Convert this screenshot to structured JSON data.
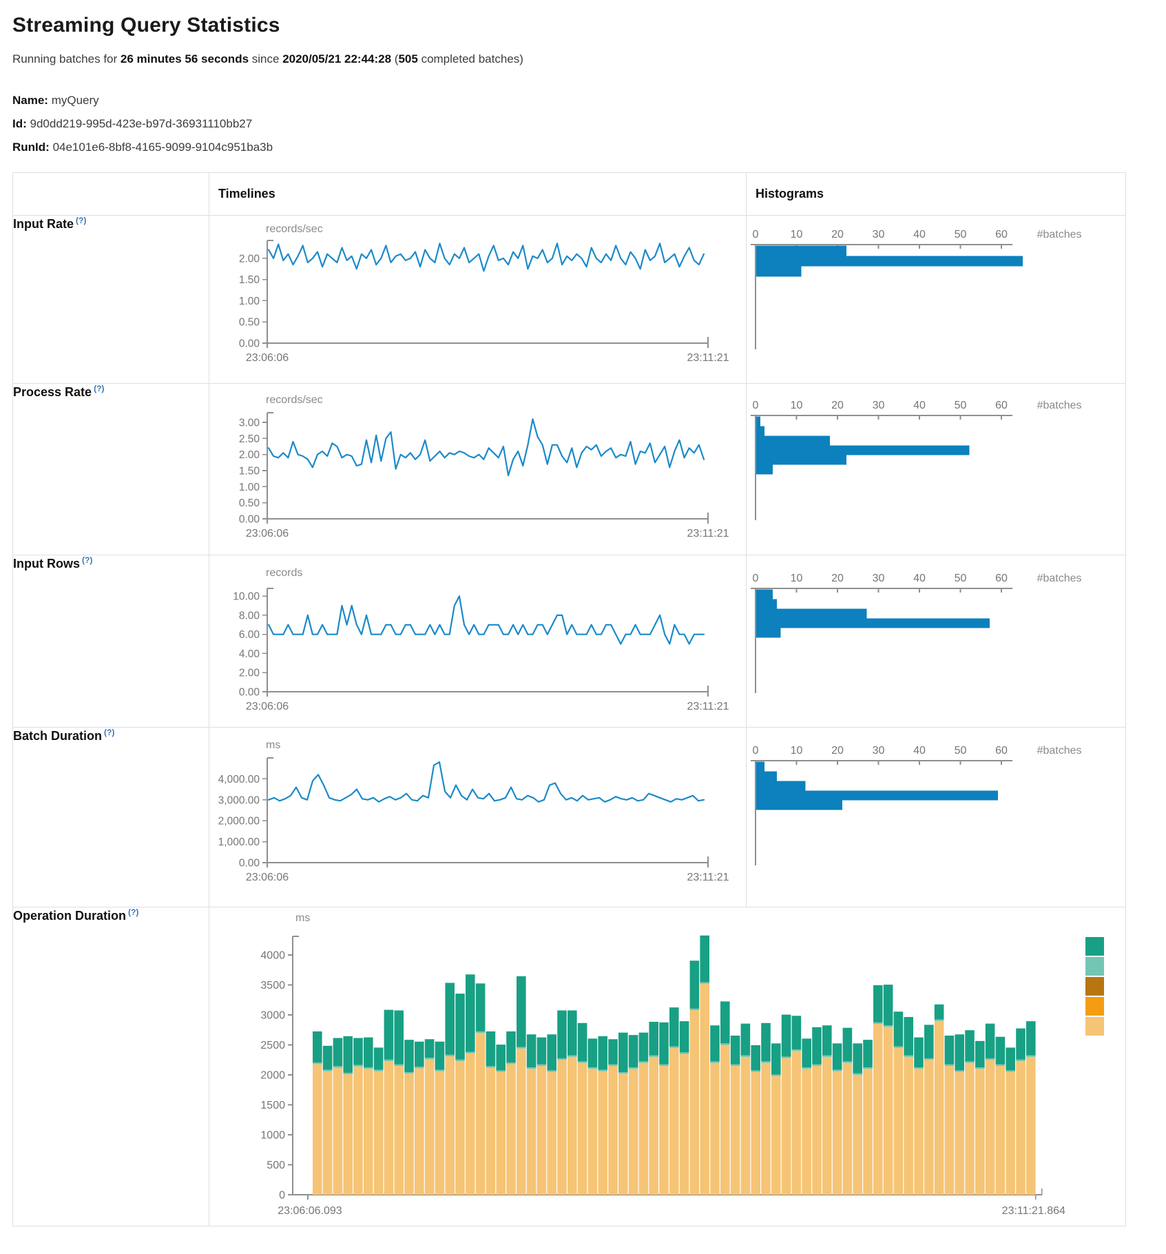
{
  "header": {
    "title": "Streaming Query Statistics",
    "running_prefix": "Running batches for",
    "duration": "26 minutes 56 seconds",
    "since_word": "since",
    "start_time": "2020/05/21 22:44:28",
    "paren_open": "(",
    "batch_count": "505",
    "completed_suffix": "completed batches)",
    "name_label": "Name:",
    "name_value": "myQuery",
    "id_label": "Id:",
    "id_value": "9d0dd219-995d-423e-b97d-36931110bb27",
    "runid_label": "RunId:",
    "runid_value": "04e101e6-8bf8-4165-9099-9104c951ba3b"
  },
  "table": {
    "col_timelines": "Timelines",
    "col_histograms": "Histograms",
    "help_marker": "(?)",
    "batches_label": "#batches"
  },
  "colors": {
    "line": "#1b8ac9",
    "bar": "#0c81bd",
    "axis": "#8f8f8f",
    "tick_text": "#767676",
    "stack": {
      "top": "#18a084",
      "mid": "#74c6b4",
      "base": "#f6c475"
    },
    "legend": [
      "#18a084",
      "#74c6b4",
      "#b7760f",
      "#f49d13",
      "#f6c475"
    ]
  },
  "chart_data": {
    "rows": [
      {
        "label": "Input Rate",
        "timeline": {
          "type": "line",
          "unit": "records/sec",
          "x_start": "23:06:06",
          "x_end": "23:11:21",
          "domain": 2.42,
          "yticks": [
            {
              "v": 2,
              "label": "2.00"
            },
            {
              "v": 1.5,
              "label": "1.50"
            },
            {
              "v": 1,
              "label": "1.00"
            },
            {
              "v": 0.5,
              "label": "0.50"
            },
            {
              "v": 0,
              "label": "0.00"
            }
          ],
          "values": [
            2.2,
            2.0,
            2.33,
            1.95,
            2.1,
            1.85,
            2.05,
            2.3,
            1.9,
            2.0,
            2.15,
            1.8,
            2.1,
            2.0,
            1.9,
            2.25,
            1.95,
            2.05,
            1.75,
            2.1,
            2.0,
            2.2,
            1.85,
            2.0,
            2.3,
            1.9,
            2.05,
            2.1,
            1.95,
            2.0,
            2.15,
            1.8,
            2.2,
            2.0,
            1.9,
            2.35,
            2.0,
            1.85,
            2.1,
            2.0,
            2.25,
            1.9,
            2.0,
            2.1,
            1.7,
            2.05,
            2.3,
            1.95,
            2.0,
            1.85,
            2.15,
            2.0,
            2.3,
            1.75,
            2.05,
            2.0,
            2.2,
            1.9,
            2.0,
            2.35,
            1.85,
            2.05,
            1.95,
            2.1,
            2.0,
            1.8,
            2.25,
            2.0,
            1.9,
            2.1,
            1.95,
            2.3,
            2.0,
            1.85,
            2.15,
            2.0,
            1.75,
            2.2,
            1.95,
            2.05,
            2.35,
            1.9,
            2.0,
            2.1,
            1.8,
            2.05,
            2.25,
            1.95,
            1.85,
            2.1
          ]
        },
        "histogram": {
          "type": "bar",
          "xticks": [
            0,
            10,
            20,
            30,
            40,
            50,
            60
          ],
          "values": [
            22,
            65,
            11
          ],
          "xlabel": "#batches"
        }
      },
      {
        "label": "Process Rate",
        "timeline": {
          "type": "line",
          "unit": "records/sec",
          "x_start": "23:06:06",
          "x_end": "23:11:21",
          "domain": 3.3,
          "yticks": [
            {
              "v": 3,
              "label": "3.00"
            },
            {
              "v": 2.5,
              "label": "2.50"
            },
            {
              "v": 2,
              "label": "2.00"
            },
            {
              "v": 1.5,
              "label": "1.50"
            },
            {
              "v": 1,
              "label": "1.00"
            },
            {
              "v": 0.5,
              "label": "0.50"
            },
            {
              "v": 0,
              "label": "0.00"
            }
          ],
          "values": [
            2.2,
            1.95,
            1.9,
            2.05,
            1.9,
            2.4,
            2.0,
            1.95,
            1.85,
            1.6,
            2.0,
            2.1,
            1.95,
            2.35,
            2.25,
            1.9,
            2.0,
            1.95,
            1.65,
            1.7,
            2.45,
            1.75,
            2.6,
            1.8,
            2.5,
            2.7,
            1.55,
            2.0,
            1.9,
            2.05,
            1.85,
            2.0,
            2.45,
            1.8,
            1.95,
            2.1,
            1.9,
            2.05,
            2.0,
            2.1,
            2.05,
            1.95,
            1.9,
            2.0,
            1.85,
            2.2,
            2.05,
            1.9,
            2.25,
            1.35,
            1.85,
            2.1,
            1.65,
            2.3,
            3.1,
            2.55,
            2.3,
            1.7,
            2.3,
            2.3,
            1.95,
            1.75,
            2.2,
            1.6,
            2.05,
            2.25,
            2.15,
            2.3,
            1.95,
            2.1,
            2.2,
            1.9,
            2.0,
            1.95,
            2.4,
            1.7,
            2.1,
            2.05,
            2.35,
            1.75,
            2.0,
            2.25,
            1.6,
            2.1,
            2.45,
            1.9,
            2.2,
            2.05,
            2.3,
            1.85
          ]
        },
        "histogram": {
          "type": "bar",
          "xticks": [
            0,
            10,
            20,
            30,
            40,
            50,
            60
          ],
          "values": [
            1,
            2,
            18,
            52,
            22,
            4
          ],
          "xlabel": "#batches"
        }
      },
      {
        "label": "Input Rows",
        "timeline": {
          "type": "line",
          "unit": "records",
          "x_start": "23:06:06",
          "x_end": "23:11:21",
          "domain": 10.8,
          "yticks": [
            {
              "v": 10,
              "label": "10.00"
            },
            {
              "v": 8,
              "label": "8.00"
            },
            {
              "v": 6,
              "label": "6.00"
            },
            {
              "v": 4,
              "label": "4.00"
            },
            {
              "v": 2,
              "label": "2.00"
            },
            {
              "v": 0,
              "label": "0.00"
            }
          ],
          "values": [
            7,
            6,
            6,
            6,
            7,
            6,
            6,
            6,
            8,
            6,
            6,
            7,
            6,
            6,
            6,
            9,
            7,
            9,
            7,
            6,
            8,
            6,
            6,
            6,
            7,
            7,
            6,
            6,
            7,
            7,
            6,
            6,
            6,
            7,
            6,
            7,
            6,
            6,
            9,
            10,
            7,
            6,
            7,
            6,
            6,
            7,
            7,
            7,
            6,
            6,
            7,
            6,
            7,
            6,
            6,
            7,
            7,
            6,
            7,
            8,
            8,
            6,
            7,
            6,
            6,
            6,
            7,
            6,
            6,
            7,
            7,
            6,
            5,
            6,
            6,
            7,
            6,
            6,
            6,
            7,
            8,
            6,
            5,
            7,
            6,
            6,
            5,
            6,
            6,
            6
          ]
        },
        "histogram": {
          "type": "bar",
          "xticks": [
            0,
            10,
            20,
            30,
            40,
            50,
            60
          ],
          "values": [
            4,
            5,
            27,
            57,
            6
          ],
          "xlabel": "#batches"
        }
      },
      {
        "label": "Batch Duration",
        "timeline": {
          "type": "line",
          "unit": "ms",
          "x_start": "23:06:06",
          "x_end": "23:11:21",
          "domain": 5000,
          "yticks": [
            {
              "v": 4000,
              "label": "4,000.00"
            },
            {
              "v": 3000,
              "label": "3,000.00"
            },
            {
              "v": 2000,
              "label": "2,000.00"
            },
            {
              "v": 1000,
              "label": "1,000.00"
            },
            {
              "v": 0,
              "label": "0.00"
            }
          ],
          "values": [
            3000,
            3100,
            2950,
            3050,
            3200,
            3600,
            3100,
            3000,
            3900,
            4200,
            3700,
            3100,
            3000,
            2950,
            3100,
            3250,
            3500,
            3050,
            3000,
            3100,
            2900,
            3050,
            3150,
            3000,
            3100,
            3300,
            3000,
            2950,
            3200,
            3100,
            4650,
            4800,
            3400,
            3100,
            3700,
            3200,
            3000,
            3500,
            3100,
            3050,
            3300,
            2950,
            3000,
            3100,
            3600,
            3050,
            3000,
            3200,
            3100,
            2900,
            3000,
            3700,
            3800,
            3300,
            3000,
            3100,
            2950,
            3200,
            3000,
            3050,
            3100,
            2900,
            3000,
            3150,
            3050,
            3000,
            3100,
            2950,
            3000,
            3300,
            3200,
            3100,
            3000,
            2900,
            3050,
            3000,
            3100,
            3200,
            2950,
            3000
          ]
        },
        "histogram": {
          "type": "bar",
          "xticks": [
            0,
            10,
            20,
            30,
            40,
            50,
            60
          ],
          "values": [
            2,
            5,
            12,
            59,
            21
          ],
          "xlabel": "#batches"
        }
      },
      {
        "label": "Operation Duration",
        "stacked": {
          "type": "bar",
          "unit": "ms",
          "x_start": "23:06:06.093",
          "x_end": "23:11:21.864",
          "divider": 25,
          "yticks": [
            {
              "v": 4000,
              "label": "4000"
            },
            {
              "v": 3500,
              "label": "3500"
            },
            {
              "v": 3000,
              "label": "3000"
            },
            {
              "v": 2500,
              "label": "2500"
            },
            {
              "v": 2000,
              "label": "2000"
            },
            {
              "v": 1500,
              "label": "1500"
            },
            {
              "v": 1000,
              "label": "1000"
            },
            {
              "v": 500,
              "label": "500"
            },
            {
              "v": 0,
              "label": "0"
            }
          ],
          "bars": [
            [
              2180,
              520
            ],
            [
              2060,
              400
            ],
            [
              2120,
              470
            ],
            [
              2010,
              610
            ],
            [
              2140,
              450
            ],
            [
              2100,
              500
            ],
            [
              2060,
              370
            ],
            [
              2230,
              830
            ],
            [
              2150,
              900
            ],
            [
              2020,
              540
            ],
            [
              2110,
              420
            ],
            [
              2260,
              310
            ],
            [
              2060,
              470
            ],
            [
              2310,
              1200
            ],
            [
              2230,
              1100
            ],
            [
              2360,
              1290
            ],
            [
              2700,
              800
            ],
            [
              2120,
              580
            ],
            [
              2050,
              430
            ],
            [
              2180,
              520
            ],
            [
              2440,
              1180
            ],
            [
              2100,
              550
            ],
            [
              2150,
              450
            ],
            [
              2050,
              600
            ],
            [
              2250,
              800
            ],
            [
              2300,
              750
            ],
            [
              2200,
              640
            ],
            [
              2100,
              480
            ],
            [
              2060,
              560
            ],
            [
              2150,
              420
            ],
            [
              2020,
              660
            ],
            [
              2100,
              540
            ],
            [
              2200,
              480
            ],
            [
              2300,
              560
            ],
            [
              2150,
              700
            ],
            [
              2450,
              650
            ],
            [
              2350,
              520
            ],
            [
              3080,
              800
            ],
            [
              3520,
              780
            ],
            [
              2200,
              600
            ],
            [
              2500,
              700
            ],
            [
              2150,
              480
            ],
            [
              2300,
              530
            ],
            [
              2050,
              420
            ],
            [
              2200,
              640
            ],
            [
              1980,
              520
            ],
            [
              2280,
              700
            ],
            [
              2400,
              560
            ],
            [
              2100,
              480
            ],
            [
              2150,
              620
            ],
            [
              2300,
              500
            ],
            [
              2060,
              440
            ],
            [
              2200,
              560
            ],
            [
              2000,
              500
            ],
            [
              2100,
              460
            ],
            [
              2850,
              620
            ],
            [
              2800,
              680
            ],
            [
              2450,
              580
            ],
            [
              2300,
              640
            ],
            [
              2100,
              500
            ],
            [
              2250,
              560
            ],
            [
              2900,
              250
            ],
            [
              2150,
              480
            ],
            [
              2050,
              600
            ],
            [
              2200,
              520
            ],
            [
              2100,
              440
            ],
            [
              2250,
              580
            ],
            [
              2150,
              460
            ],
            [
              2050,
              380
            ],
            [
              2230,
              520
            ],
            [
              2300,
              570
            ]
          ]
        }
      }
    ]
  }
}
